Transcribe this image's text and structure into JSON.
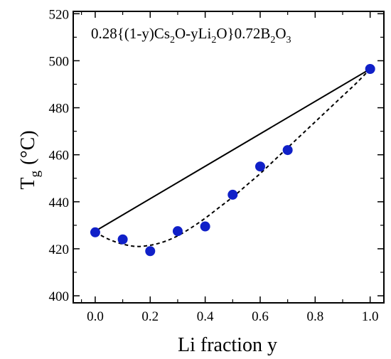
{
  "chart_data": {
    "type": "scatter",
    "annotation_parts": {
      "p1": "0.28{(1-y)Cs",
      "s1": "2",
      "p2": "O-yLi",
      "s2": "2",
      "p3": "O}0.72B",
      "s3": "2",
      "p4": "O",
      "s4": "3"
    },
    "ylabel_parts": {
      "main": "T",
      "sub": "g",
      "unit": "(°C)"
    },
    "xlabel": "Li fraction y",
    "xlim": [
      -0.08,
      1.05
    ],
    "ylim": [
      397,
      521
    ],
    "xticks": [
      0.0,
      0.2,
      0.4,
      0.6,
      0.8,
      1.0
    ],
    "xtick_labels": [
      "0.0",
      "0.2",
      "0.4",
      "0.6",
      "0.8",
      "1.0"
    ],
    "yticks": [
      400,
      420,
      440,
      460,
      480,
      500,
      520
    ],
    "ytick_labels": [
      "400",
      "420",
      "440",
      "460",
      "480",
      "500",
      "520"
    ],
    "grid": false,
    "series": [
      {
        "x": [
          0.0,
          0.1,
          0.2,
          0.3,
          0.4,
          0.5,
          0.6,
          0.7,
          1.0
        ],
        "y": [
          427,
          424,
          419,
          427.5,
          429.5,
          443,
          455,
          462,
          496.5
        ],
        "color": "#1020c8",
        "marker": "circle"
      },
      {
        "x": [
          0.0,
          1.0
        ],
        "y": [
          427.5,
          496.5
        ],
        "style": "solid",
        "color": "#000000"
      },
      {
        "x": [
          0.0,
          0.05,
          0.1,
          0.15,
          0.2,
          0.25,
          0.3,
          0.35,
          0.4,
          0.45,
          0.5,
          0.55,
          0.6,
          0.65,
          0.7,
          0.75,
          0.8,
          0.85,
          0.9,
          0.95,
          1.0
        ],
        "y": [
          427,
          424,
          422,
          421,
          421.5,
          423,
          425.5,
          429,
          433,
          437.5,
          442,
          447,
          452,
          457.5,
          463,
          468.5,
          474,
          479.5,
          485,
          490.5,
          496.5
        ],
        "style": "dotted",
        "color": "#000000"
      }
    ]
  }
}
